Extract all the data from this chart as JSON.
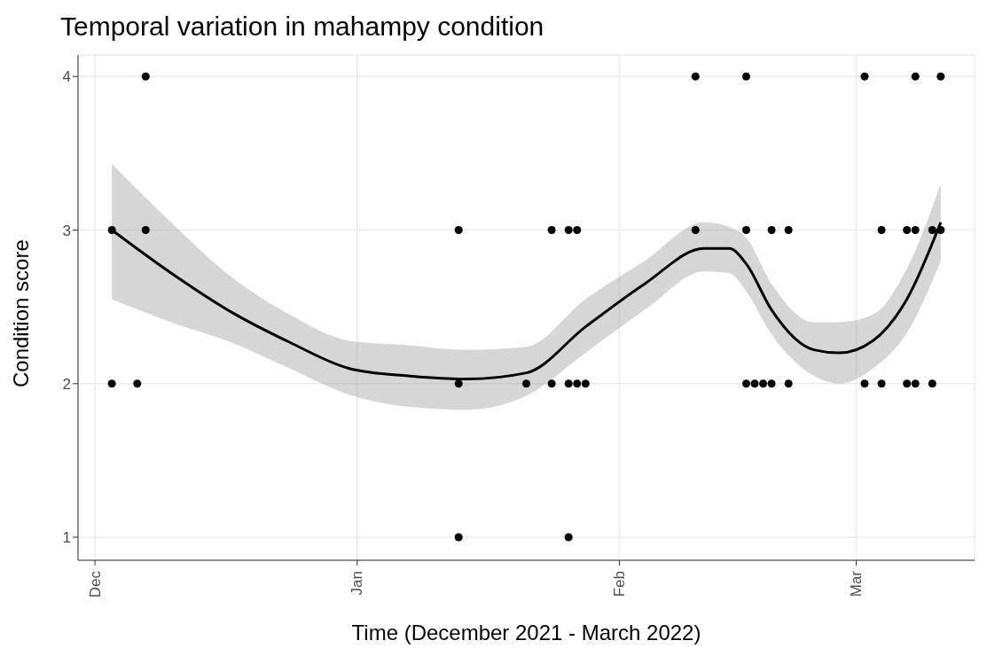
{
  "chart_data": {
    "type": "scatter",
    "title": "Temporal variation in mahampy condition",
    "xlabel": "Time (December 2021 - March 2022)",
    "ylabel": "Condition score",
    "xlim": [
      "2021-11-29",
      "2022-03-15"
    ],
    "xticks": [
      {
        "value": "2021-12-01",
        "label": "Dec"
      },
      {
        "value": "2022-01-01",
        "label": "Jan"
      },
      {
        "value": "2022-02-01",
        "label": "Feb"
      },
      {
        "value": "2022-03-01",
        "label": "Mar"
      }
    ],
    "ylim": [
      0.85,
      4.14
    ],
    "yticks": [
      1,
      2,
      3,
      4
    ],
    "grid": true,
    "series": [
      {
        "marker": "circle",
        "color": "#000000",
        "x": [
          "2021-12-03",
          "2021-12-03",
          "2021-12-06",
          "2021-12-07",
          "2021-12-07",
          "2022-01-13",
          "2022-01-13",
          "2022-01-13",
          "2022-01-21",
          "2022-01-24",
          "2022-01-24",
          "2022-01-26",
          "2022-01-26",
          "2022-01-26",
          "2022-01-27",
          "2022-01-27",
          "2022-01-28",
          "2022-02-10",
          "2022-02-10",
          "2022-02-16",
          "2022-02-16",
          "2022-02-16",
          "2022-02-17",
          "2022-02-18",
          "2022-02-19",
          "2022-02-19",
          "2022-02-21",
          "2022-02-21",
          "2022-03-02",
          "2022-03-02",
          "2022-03-04",
          "2022-03-04",
          "2022-03-07",
          "2022-03-07",
          "2022-03-08",
          "2022-03-08",
          "2022-03-08",
          "2022-03-10",
          "2022-03-10",
          "2022-03-11",
          "2022-03-11"
        ],
        "values": [
          3,
          2,
          2,
          4,
          3,
          3,
          2,
          1,
          2,
          3,
          2,
          3,
          2,
          1,
          3,
          2,
          2,
          4,
          3,
          4,
          3,
          2,
          2,
          2,
          3,
          2,
          3,
          2,
          4,
          2,
          3,
          2,
          3,
          2,
          4,
          3,
          2,
          3,
          2,
          4,
          3
        ]
      },
      {
        "type": "line",
        "marker": "none",
        "color": "#000000",
        "x": [
          "2021-12-03",
          "2021-12-10",
          "2021-12-17",
          "2021-12-24",
          "2021-12-31",
          "2022-01-07",
          "2022-01-14",
          "2022-01-21",
          "2022-01-28",
          "2022-02-04",
          "2022-02-11",
          "2022-02-14",
          "2022-02-16",
          "2022-02-19",
          "2022-02-24",
          "2022-02-27",
          "2022-03-03",
          "2022-03-07",
          "2022-03-11"
        ],
        "values": [
          3.0,
          2.72,
          2.47,
          2.27,
          2.1,
          2.05,
          2.03,
          2.07,
          2.37,
          2.65,
          2.88,
          2.88,
          2.78,
          2.48,
          2.22,
          2.2,
          2.28,
          2.55,
          3.05
        ],
        "lower": [
          2.55,
          2.4,
          2.27,
          2.1,
          1.93,
          1.85,
          1.83,
          1.92,
          2.2,
          2.48,
          2.73,
          2.72,
          2.6,
          2.32,
          2.05,
          2.0,
          2.1,
          2.33,
          2.8
        ],
        "upper": [
          3.43,
          3.05,
          2.7,
          2.45,
          2.28,
          2.25,
          2.22,
          2.24,
          2.55,
          2.8,
          3.05,
          3.02,
          2.95,
          2.65,
          2.4,
          2.4,
          2.45,
          2.75,
          3.3
        ]
      }
    ]
  }
}
